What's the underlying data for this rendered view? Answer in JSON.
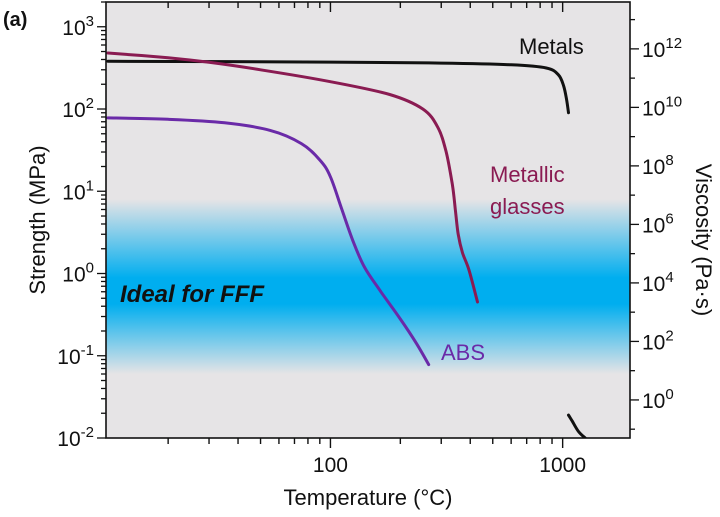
{
  "panel_label": "(a)",
  "chart_data": {
    "type": "line",
    "title": "",
    "xlabel": "Temperature (°C)",
    "ylabel": "Strength (MPa)",
    "y2label": "Viscosity (Pa·s)",
    "xscale": "log",
    "yscale": "log",
    "xlim": [
      10.8,
      1950
    ],
    "ylim": [
      0.01,
      2000
    ],
    "y2lim": [
      0.05,
      40000000000000.0
    ],
    "xticks": [
      {
        "value": 100,
        "label": "100"
      },
      {
        "value": 1000,
        "label": "1000"
      }
    ],
    "yticks": [
      {
        "value": 1000,
        "base": "10",
        "exp": "3"
      },
      {
        "value": 100,
        "base": "10",
        "exp": "2"
      },
      {
        "value": 10,
        "base": "10",
        "exp": "1"
      },
      {
        "value": 1,
        "base": "10",
        "exp": "0"
      },
      {
        "value": 0.1,
        "base": "10",
        "exp": "-1"
      },
      {
        "value": 0.01,
        "base": "10",
        "exp": "-2"
      }
    ],
    "y2ticks": [
      {
        "value": 1000000000000.0,
        "base": "10",
        "exp": "12"
      },
      {
        "value": 10000000000.0,
        "base": "10",
        "exp": "10"
      },
      {
        "value": 100000000.0,
        "base": "10",
        "exp": "8"
      },
      {
        "value": 1000000.0,
        "base": "10",
        "exp": "6"
      },
      {
        "value": 10000.0,
        "base": "10",
        "exp": "4"
      },
      {
        "value": 100.0,
        "base": "10",
        "exp": "2"
      },
      {
        "value": 1,
        "base": "10",
        "exp": "0"
      }
    ],
    "band": {
      "label": "Ideal for FFF",
      "center": 0.5,
      "fade_low": 0.06,
      "fade_high": 8,
      "color": "#00aeef"
    },
    "background": "#e6e4e6",
    "series": [
      {
        "name": "Metals",
        "label_lines": [
          "Metals"
        ],
        "color": "#111111",
        "segments": [
          [
            [
              11,
              380
            ],
            [
              100,
              372
            ],
            [
              300,
              362
            ],
            [
              600,
              345
            ],
            [
              850,
              315
            ],
            [
              960,
              260
            ],
            [
              1010,
              190
            ],
            [
              1040,
              130
            ],
            [
              1060,
              90
            ]
          ],
          [
            [
              1060,
              0.019
            ],
            [
              1100,
              0.016
            ],
            [
              1170,
              0.012
            ],
            [
              1250,
              0.01
            ]
          ]
        ]
      },
      {
        "name": "Metallic glasses",
        "label_lines": [
          "Metallic",
          "glasses"
        ],
        "color": "#8a1b52",
        "segments": [
          [
            [
              11,
              480
            ],
            [
              20,
              420
            ],
            [
              30,
              370
            ],
            [
              50,
              300
            ],
            [
              100,
              215
            ],
            [
              180,
              150
            ],
            [
              250,
              100
            ],
            [
              290,
              60
            ],
            [
              315,
              30
            ],
            [
              335,
              12
            ],
            [
              345,
              6
            ],
            [
              355,
              3
            ],
            [
              370,
              1.8
            ],
            [
              395,
              1.1
            ],
            [
              430,
              0.45
            ]
          ]
        ]
      },
      {
        "name": "ABS",
        "label_lines": [
          "ABS"
        ],
        "color": "#6a2aa8",
        "segments": [
          [
            [
              11,
              78
            ],
            [
              20,
              75
            ],
            [
              35,
              68
            ],
            [
              55,
              55
            ],
            [
              75,
              38
            ],
            [
              90,
              24
            ],
            [
              100,
              15
            ],
            [
              112,
              6
            ],
            [
              125,
              2.5
            ],
            [
              140,
              1.2
            ],
            [
              165,
              0.6
            ],
            [
              200,
              0.28
            ],
            [
              235,
              0.14
            ],
            [
              265,
              0.078
            ]
          ]
        ]
      }
    ]
  }
}
